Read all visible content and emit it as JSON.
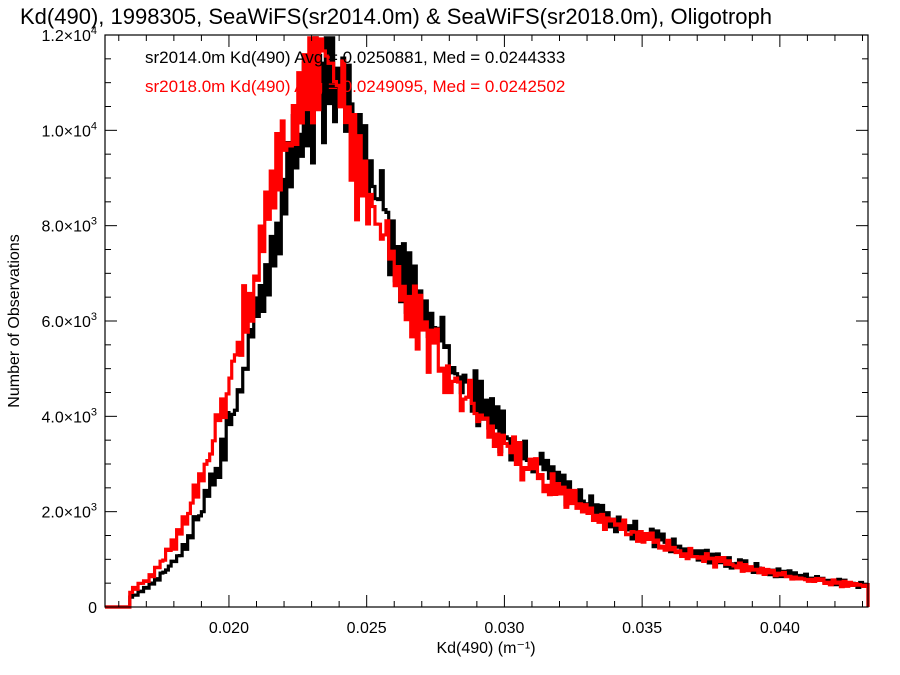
{
  "chart_data": {
    "type": "histogram",
    "title": "Kd(490), 1998305, SeaWiFS(sr2014.0m) & SeaWiFS(sr2018.0m), Oligotroph",
    "xlabel": "Kd(490) (m⁻¹)",
    "ylabel": "Number of Observations",
    "xlim": [
      0.0155,
      0.0432
    ],
    "ylim": [
      0,
      12000
    ],
    "x_ticks": [
      0.02,
      0.025,
      0.03,
      0.035,
      0.04
    ],
    "x_tick_labels": [
      "0.020",
      "0.025",
      "0.030",
      "0.035",
      "0.040"
    ],
    "y_ticks": [
      0,
      2000,
      4000,
      6000,
      8000,
      10000,
      12000
    ],
    "y_tick_labels": [
      {
        "mant": "0",
        "exp": ""
      },
      {
        "mant": "2.0×10",
        "exp": "3"
      },
      {
        "mant": "4.0×10",
        "exp": "3"
      },
      {
        "mant": "6.0×10",
        "exp": "3"
      },
      {
        "mant": "8.0×10",
        "exp": "3"
      },
      {
        "mant": "1.0×10",
        "exp": "4"
      },
      {
        "mant": "1.2×10",
        "exp": "4"
      }
    ],
    "grid": false,
    "legend_placement": "top-left",
    "series": [
      {
        "name": "sr2014.0m",
        "color": "#000000",
        "stats_label": "sr2014.0m Kd(490) Avg = 0.0250881, Med = 0.0244333",
        "avg": 0.0250881,
        "median": 0.0244333,
        "peak_x": 0.024,
        "peak_y": 11300
      },
      {
        "name": "sr2018.0m",
        "color": "#ff0000",
        "stats_label": "sr2018.0m Kd(490) Avg = 0.0249095, Med = 0.0242502",
        "avg": 0.0249095,
        "median": 0.0242502,
        "peak_x": 0.0236,
        "peak_y": 11400
      }
    ]
  }
}
